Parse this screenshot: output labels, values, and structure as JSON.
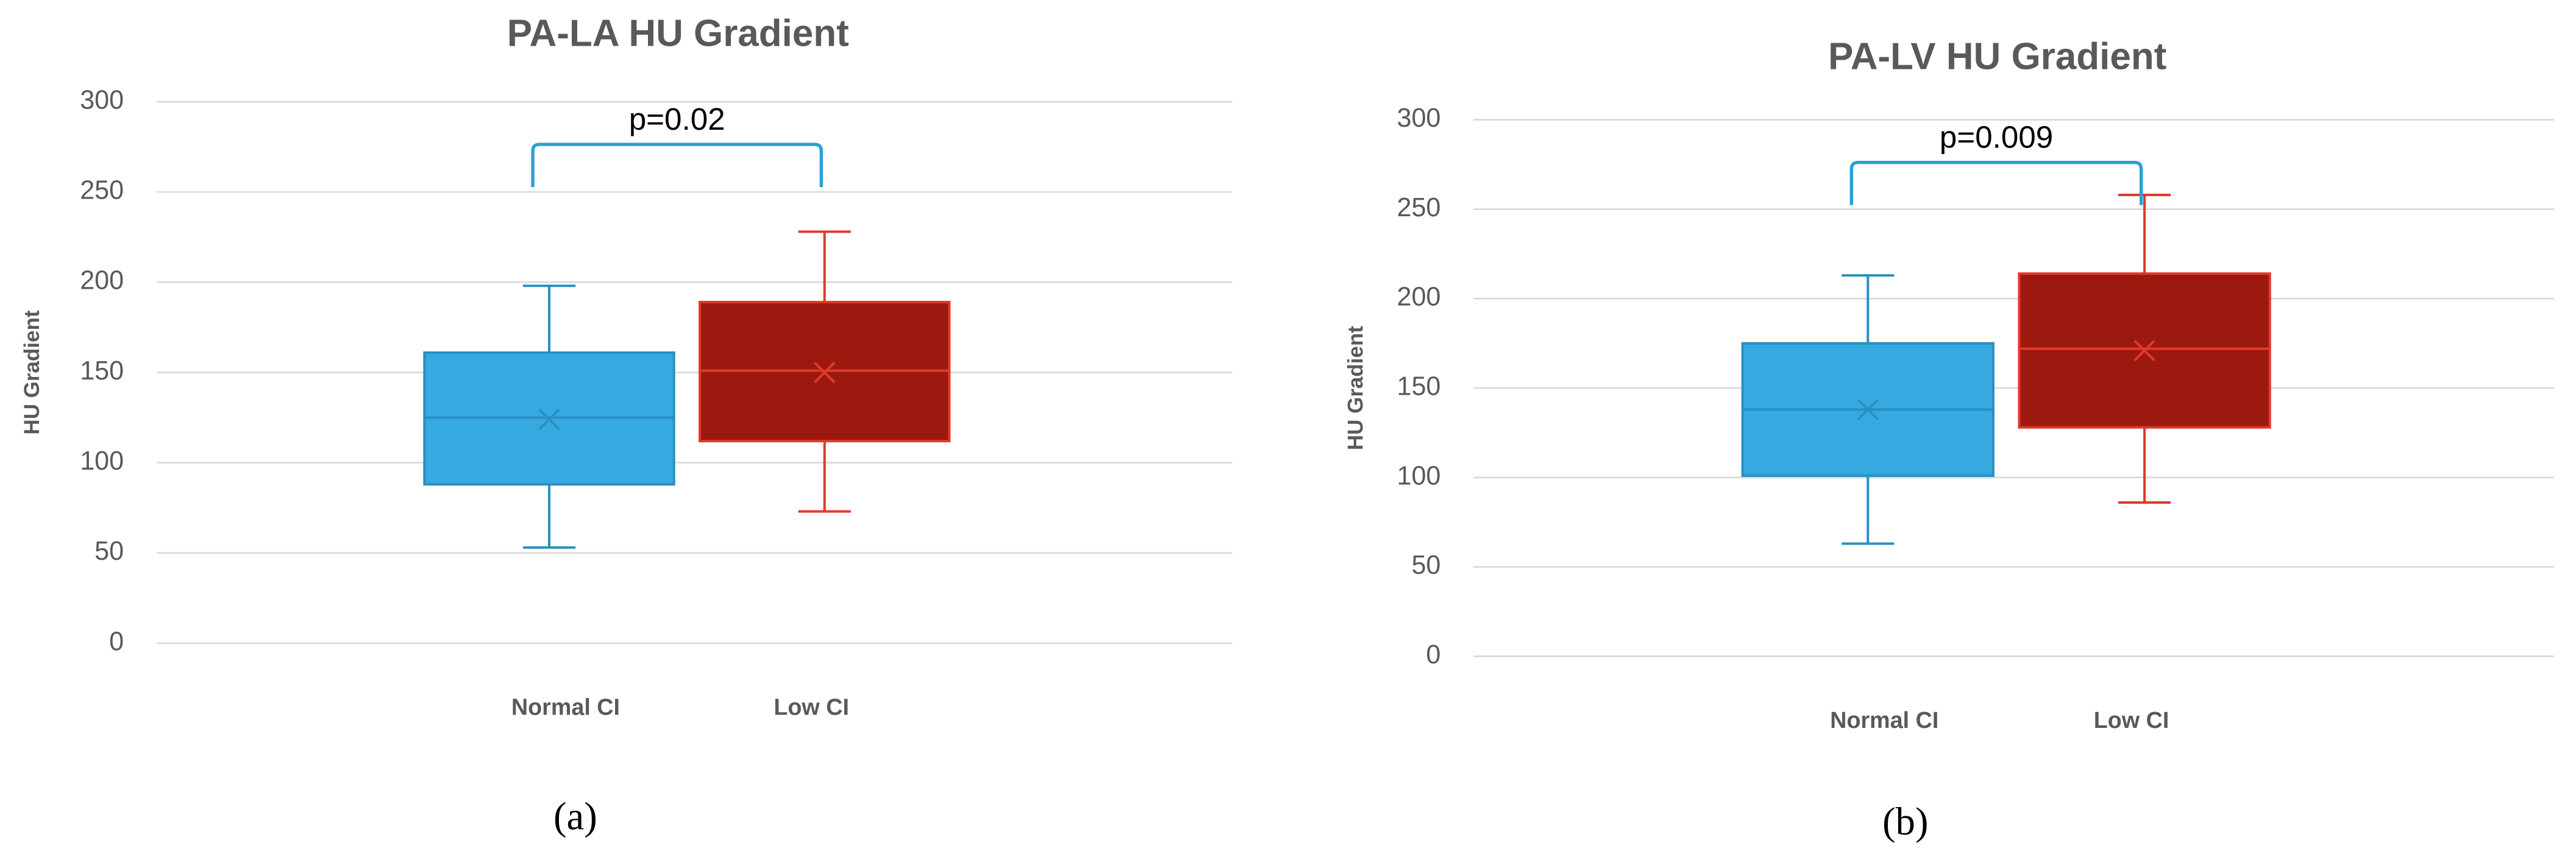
{
  "chart_data": [
    {
      "type": "box",
      "title": "PA-LA HU Gradient",
      "y_label": "HU Gradient",
      "annotation": "p=0.02",
      "panel_label": "(a)",
      "ylim": [
        0,
        300
      ],
      "yticks": [
        0,
        50,
        100,
        150,
        200,
        250,
        300
      ],
      "grid": true,
      "categories": [
        "Normal CI",
        "Low CI"
      ],
      "boxes": [
        {
          "min": 53,
          "q1": 88,
          "median": 125,
          "q3": 161,
          "max": 198,
          "mean": 124,
          "color": "#35a9e0",
          "line_color": "#2b8fc2"
        },
        {
          "min": 73,
          "q1": 112,
          "median": 151,
          "q3": 189,
          "max": 228,
          "mean": 150,
          "color": "#9c1910",
          "line_color": "#e0392b"
        }
      ]
    },
    {
      "type": "box",
      "title": "PA-LV HU Gradient",
      "y_label": "HU Gradient",
      "annotation": "p=0.009",
      "panel_label": "(b)",
      "ylim": [
        0,
        300
      ],
      "yticks": [
        0,
        50,
        100,
        150,
        200,
        250,
        300
      ],
      "grid": true,
      "categories": [
        "Normal CI",
        "Low CI"
      ],
      "boxes": [
        {
          "min": 63,
          "q1": 101,
          "median": 138,
          "q3": 175,
          "max": 213,
          "mean": 138,
          "color": "#35a9e0",
          "line_color": "#2b8fc2"
        },
        {
          "min": 86,
          "q1": 128,
          "median": 172,
          "q3": 214,
          "max": 258,
          "mean": 171,
          "color": "#9c1910",
          "line_color": "#e0392b"
        }
      ]
    }
  ]
}
